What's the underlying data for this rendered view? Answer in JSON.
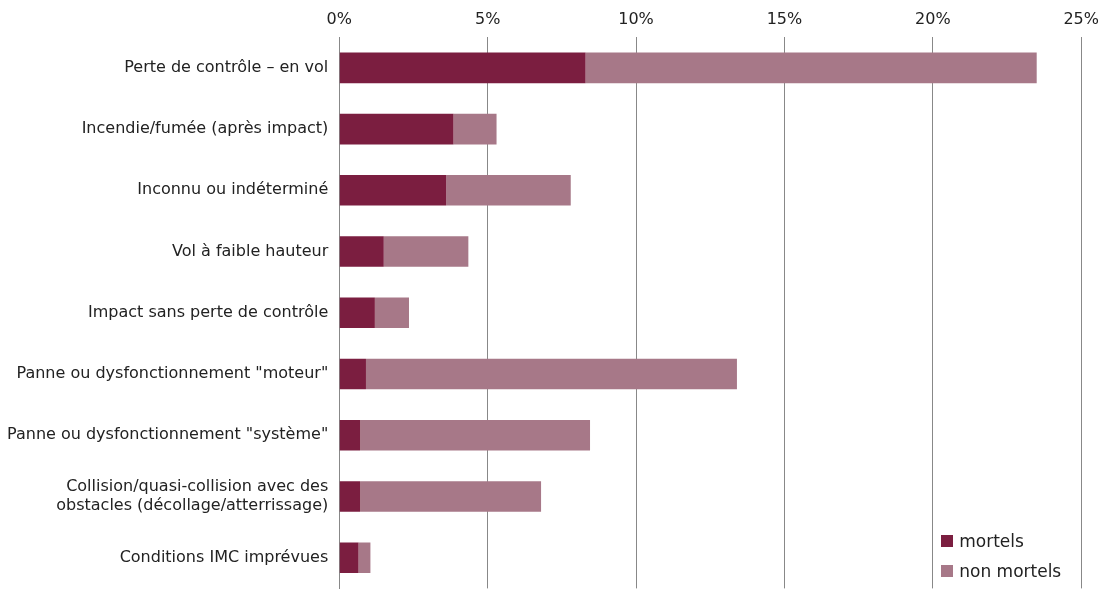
{
  "chart_data": {
    "type": "bar",
    "orientation": "horizontal",
    "stacked": true,
    "categories": [
      "Perte de contrôle – en vol",
      "Incendie/fumée (après impact)",
      "Inconnu ou indéterminé",
      "Vol à faible hauteur",
      "Impact sans perte de contrôle",
      "Panne ou dysfonctionnement \"moteur\"",
      "Panne ou dysfonctionnement \"système\"",
      "Collision/quasi-collision avec des obstacles (décollage/atterrissage)",
      "Conditions IMC imprévues"
    ],
    "series": [
      {
        "name": "mortels",
        "color": "#7b1e40",
        "values": [
          8.3,
          3.85,
          3.6,
          1.5,
          1.2,
          0.9,
          0.7,
          0.7,
          0.65
        ]
      },
      {
        "name": "non mortels",
        "color": "#a77888",
        "values": [
          15.2,
          1.45,
          4.2,
          2.85,
          1.15,
          12.5,
          7.75,
          6.1,
          0.4
        ]
      }
    ],
    "xlim": [
      0,
      25
    ],
    "xticks": [
      {
        "value": 0,
        "label": "0%"
      },
      {
        "value": 5,
        "label": "5%"
      },
      {
        "value": 10,
        "label": "10%"
      },
      {
        "value": 15,
        "label": "15%"
      },
      {
        "value": 20,
        "label": "20%"
      },
      {
        "value": 25,
        "label": "25%"
      }
    ],
    "grid": "x",
    "legend": "bottom right"
  }
}
